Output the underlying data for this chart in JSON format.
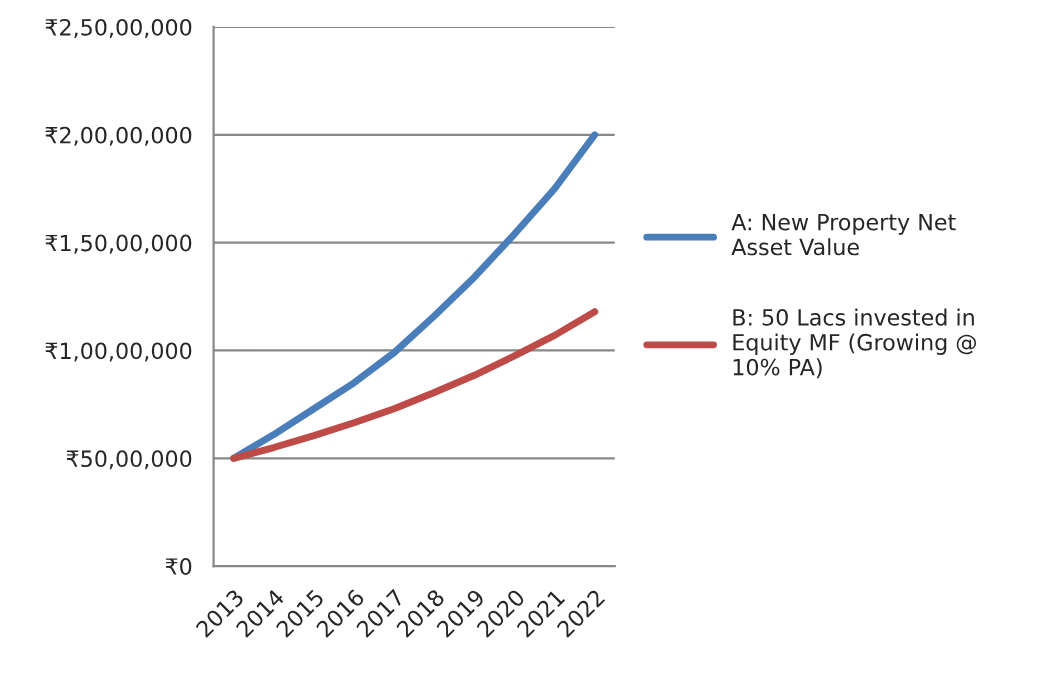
{
  "chart_data": {
    "type": "line",
    "categories": [
      "2013",
      "2014",
      "2015",
      "2016",
      "2017",
      "2018",
      "2019",
      "2020",
      "2021",
      "2022"
    ],
    "series": [
      {
        "name": "A: New Property Net\nAsset Value",
        "color": "#4a7ebb",
        "values": [
          5000000,
          6100000,
          7300000,
          8500000,
          9900000,
          11600000,
          13400000,
          15400000,
          17500000,
          20000000
        ]
      },
      {
        "name": "B: 50 Lacs invested in\nEquity MF (Growing @\n10% PA)",
        "color": "#be4b48",
        "values": [
          5000000,
          5500000,
          6050000,
          6650000,
          7300000,
          8050000,
          8850000,
          9750000,
          10700000,
          11800000
        ]
      }
    ],
    "ylim": [
      0,
      25000000
    ],
    "yticks": [
      {
        "value": 0,
        "label": "₹0"
      },
      {
        "value": 5000000,
        "label": "₹50,00,000"
      },
      {
        "value": 10000000,
        "label": "₹1,00,00,000"
      },
      {
        "value": 15000000,
        "label": "₹1,50,00,000"
      },
      {
        "value": 20000000,
        "label": "₹2,00,00,000"
      },
      {
        "value": 25000000,
        "label": "₹2,50,00,000"
      }
    ],
    "grid": "y",
    "legend": "right",
    "marker": "none",
    "line_style": "solid"
  }
}
